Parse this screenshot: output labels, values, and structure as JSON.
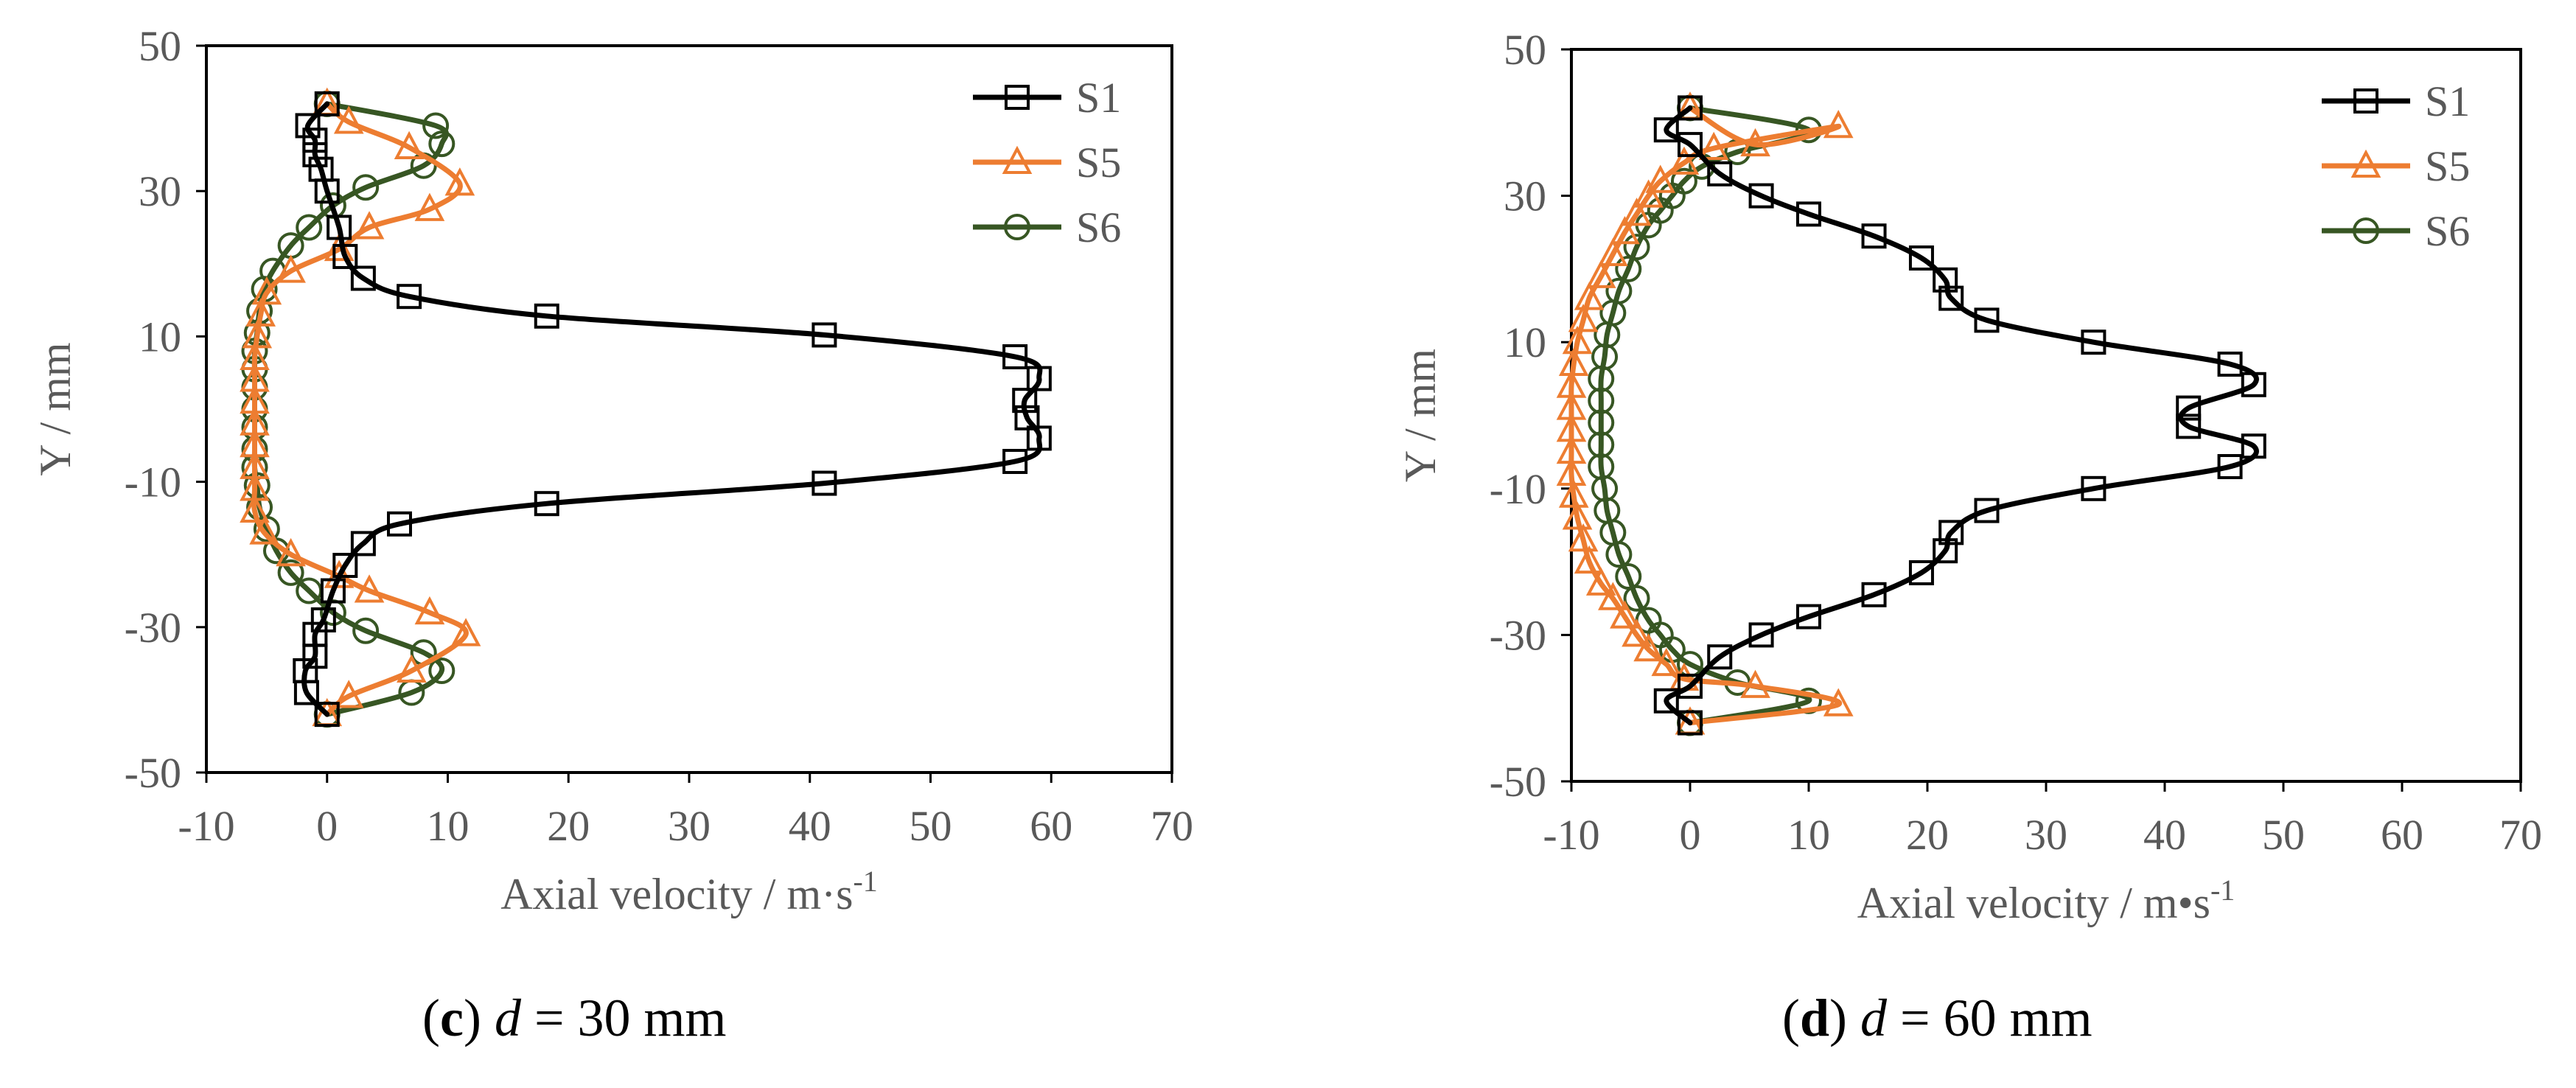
{
  "colors": {
    "S1": "#000000",
    "S5": "#ed7d31",
    "S6": "#375623",
    "axis": "#000000",
    "text": "#595959"
  },
  "chart_data": [
    {
      "type": "line",
      "panel": "c",
      "xlabel_text": "Axial velocity / m·s",
      "xlabel_sup": "-1",
      "ylabel": "Y / mm",
      "xlim": [
        -10,
        70
      ],
      "ylim": [
        -50,
        50
      ],
      "xticks": [
        "-10",
        "0",
        "10",
        "20",
        "30",
        "40",
        "50",
        "60",
        "70"
      ],
      "yticks": [
        "50",
        "30",
        "10",
        "-10",
        "-30",
        "-50"
      ],
      "legend_position": "top-right",
      "caption": {
        "letter": "c",
        "variable": "d",
        "rest": " = 30 mm"
      },
      "series": [
        {
          "name": "S1",
          "marker": "square",
          "points": [
            [
              0,
              42
            ],
            [
              -1.6,
              39
            ],
            [
              -1,
              37
            ],
            [
              -1,
              35
            ],
            [
              -0.5,
              33
            ],
            [
              0,
              30
            ],
            [
              1,
              25
            ],
            [
              1.5,
              21
            ],
            [
              3,
              18
            ],
            [
              6.8,
              15.5
            ],
            [
              18.2,
              12.8
            ],
            [
              41.2,
              10.2
            ],
            [
              57,
              7.2
            ],
            [
              59,
              4.2
            ],
            [
              57.8,
              1.2
            ],
            [
              58,
              -1.2
            ],
            [
              59,
              -4
            ],
            [
              57,
              -7.2
            ],
            [
              41.2,
              -10.2
            ],
            [
              18.2,
              -13
            ],
            [
              6,
              -15.8
            ],
            [
              3,
              -18.5
            ],
            [
              1.5,
              -21.5
            ],
            [
              0.5,
              -25
            ],
            [
              -0.3,
              -29
            ],
            [
              -1,
              -31
            ],
            [
              -1,
              -34
            ],
            [
              -1.8,
              -36
            ],
            [
              -1.7,
              -39
            ],
            [
              0,
              -42
            ]
          ]
        },
        {
          "name": "S5",
          "marker": "triangle",
          "points": [
            [
              0,
              42
            ],
            [
              1.8,
              39.5
            ],
            [
              6.8,
              36
            ],
            [
              11,
              31
            ],
            [
              8.5,
              27.5
            ],
            [
              3.5,
              25
            ],
            [
              1,
              22
            ],
            [
              -3,
              19
            ],
            [
              -5,
              16
            ],
            [
              -5.5,
              13
            ],
            [
              -5.8,
              10
            ],
            [
              -6,
              7
            ],
            [
              -6,
              4
            ],
            [
              -6,
              1
            ],
            [
              -6,
              -2
            ],
            [
              -6,
              -5
            ],
            [
              -6,
              -8
            ],
            [
              -6,
              -11
            ],
            [
              -6,
              -14
            ],
            [
              -5.2,
              -17
            ],
            [
              -3,
              -20
            ],
            [
              1,
              -23
            ],
            [
              3.5,
              -25
            ],
            [
              8.5,
              -28
            ],
            [
              11.5,
              -31
            ],
            [
              7,
              -36
            ],
            [
              1.8,
              -39.5
            ],
            [
              0,
              -42
            ]
          ]
        },
        {
          "name": "S6",
          "marker": "circle",
          "points": [
            [
              0,
              42
            ],
            [
              9,
              39
            ],
            [
              9.5,
              36.5
            ],
            [
              8,
              33.5
            ],
            [
              3.2,
              30.5
            ],
            [
              0.5,
              28
            ],
            [
              -1.5,
              25
            ],
            [
              -3,
              22.5
            ],
            [
              -4.5,
              19
            ],
            [
              -5.2,
              16.5
            ],
            [
              -5.6,
              13.5
            ],
            [
              -5.8,
              10.5
            ],
            [
              -6,
              8
            ],
            [
              -6,
              5.5
            ],
            [
              -6,
              3
            ],
            [
              -6,
              0
            ],
            [
              -6,
              -2.5
            ],
            [
              -6,
              -5.5
            ],
            [
              -6,
              -8
            ],
            [
              -5.8,
              -10.5
            ],
            [
              -5.6,
              -13.5
            ],
            [
              -5,
              -16.5
            ],
            [
              -4.2,
              -19.5
            ],
            [
              -3,
              -22.5
            ],
            [
              -1.5,
              -25
            ],
            [
              0.5,
              -28
            ],
            [
              3.2,
              -30.5
            ],
            [
              8,
              -33.5
            ],
            [
              9.5,
              -36
            ],
            [
              7,
              -39
            ],
            [
              0,
              -42
            ]
          ]
        }
      ]
    },
    {
      "type": "line",
      "panel": "d",
      "xlabel_text": "Axial velocity / m•s",
      "xlabel_sup": "-1",
      "ylabel": "Y / mm",
      "xlim": [
        -10,
        70
      ],
      "ylim": [
        -50,
        50
      ],
      "xticks": [
        "-10",
        "0",
        "10",
        "20",
        "30",
        "40",
        "50",
        "60",
        "70"
      ],
      "yticks": [
        "50",
        "30",
        "10",
        "-10",
        "-30",
        "-50"
      ],
      "legend_position": "top-right",
      "caption": {
        "letter": "d",
        "variable": "d",
        "rest": " = 60 mm"
      },
      "series": [
        {
          "name": "S1",
          "marker": "square",
          "points": [
            [
              0,
              42
            ],
            [
              -2,
              39
            ],
            [
              0,
              37
            ],
            [
              2.5,
              33
            ],
            [
              6,
              30
            ],
            [
              10,
              27.5
            ],
            [
              15.5,
              24.5
            ],
            [
              19.5,
              21.5
            ],
            [
              21.5,
              18.5
            ],
            [
              22,
              16
            ],
            [
              25,
              13
            ],
            [
              34,
              10
            ],
            [
              45.5,
              7
            ],
            [
              47.5,
              4.2
            ],
            [
              42,
              1
            ],
            [
              42,
              -1.5
            ],
            [
              47.5,
              -4.2
            ],
            [
              45.5,
              -7
            ],
            [
              34,
              -10
            ],
            [
              25,
              -13
            ],
            [
              22,
              -16
            ],
            [
              21.5,
              -18.5
            ],
            [
              19.5,
              -21.5
            ],
            [
              15.5,
              -24.5
            ],
            [
              10,
              -27.5
            ],
            [
              6,
              -30
            ],
            [
              2.5,
              -33
            ],
            [
              0,
              -37
            ],
            [
              -2,
              -39
            ],
            [
              0,
              -42
            ]
          ]
        },
        {
          "name": "S5",
          "marker": "triangle",
          "points": [
            [
              0,
              42
            ],
            [
              5.5,
              37
            ],
            [
              12.5,
              39.5
            ],
            [
              2,
              36.5
            ],
            [
              -0.5,
              34.5
            ],
            [
              -2.5,
              32
            ],
            [
              -3.5,
              30
            ],
            [
              -4.5,
              27.5
            ],
            [
              -5.5,
              25
            ],
            [
              -6.5,
              22
            ],
            [
              -7.5,
              19
            ],
            [
              -8.5,
              16
            ],
            [
              -9,
              13
            ],
            [
              -9.5,
              10
            ],
            [
              -9.8,
              7
            ],
            [
              -10,
              4
            ],
            [
              -10,
              1
            ],
            [
              -10,
              -2
            ],
            [
              -10,
              -5
            ],
            [
              -10,
              -8
            ],
            [
              -9.8,
              -11
            ],
            [
              -9.5,
              -14
            ],
            [
              -9,
              -17
            ],
            [
              -8.5,
              -20
            ],
            [
              -7.5,
              -23
            ],
            [
              -6.5,
              -25
            ],
            [
              -5.5,
              -27.5
            ],
            [
              -4.5,
              -30
            ],
            [
              -3.5,
              -32
            ],
            [
              -2,
              -34
            ],
            [
              -0.5,
              -36
            ],
            [
              5.5,
              -37
            ],
            [
              12.5,
              -39.5
            ],
            [
              0,
              -42
            ]
          ]
        },
        {
          "name": "S6",
          "marker": "circle",
          "points": [
            [
              0,
              42
            ],
            [
              10,
              39
            ],
            [
              4,
              36
            ],
            [
              1,
              34
            ],
            [
              -0.5,
              32
            ],
            [
              -1.5,
              30
            ],
            [
              -2.5,
              28
            ],
            [
              -3.5,
              26
            ],
            [
              -4.5,
              23
            ],
            [
              -5.2,
              20
            ],
            [
              -6,
              17
            ],
            [
              -6.5,
              14
            ],
            [
              -7,
              11
            ],
            [
              -7.2,
              8
            ],
            [
              -7.5,
              5
            ],
            [
              -7.5,
              2
            ],
            [
              -7.5,
              -1
            ],
            [
              -7.5,
              -4
            ],
            [
              -7.5,
              -7
            ],
            [
              -7.2,
              -10
            ],
            [
              -7,
              -13
            ],
            [
              -6.5,
              -16
            ],
            [
              -6,
              -19
            ],
            [
              -5.2,
              -22
            ],
            [
              -4.5,
              -25
            ],
            [
              -3.5,
              -28
            ],
            [
              -2.5,
              -30
            ],
            [
              -1.5,
              -32
            ],
            [
              0,
              -34
            ],
            [
              4,
              -36.5
            ],
            [
              10,
              -39
            ],
            [
              0,
              -42
            ]
          ]
        }
      ]
    }
  ]
}
